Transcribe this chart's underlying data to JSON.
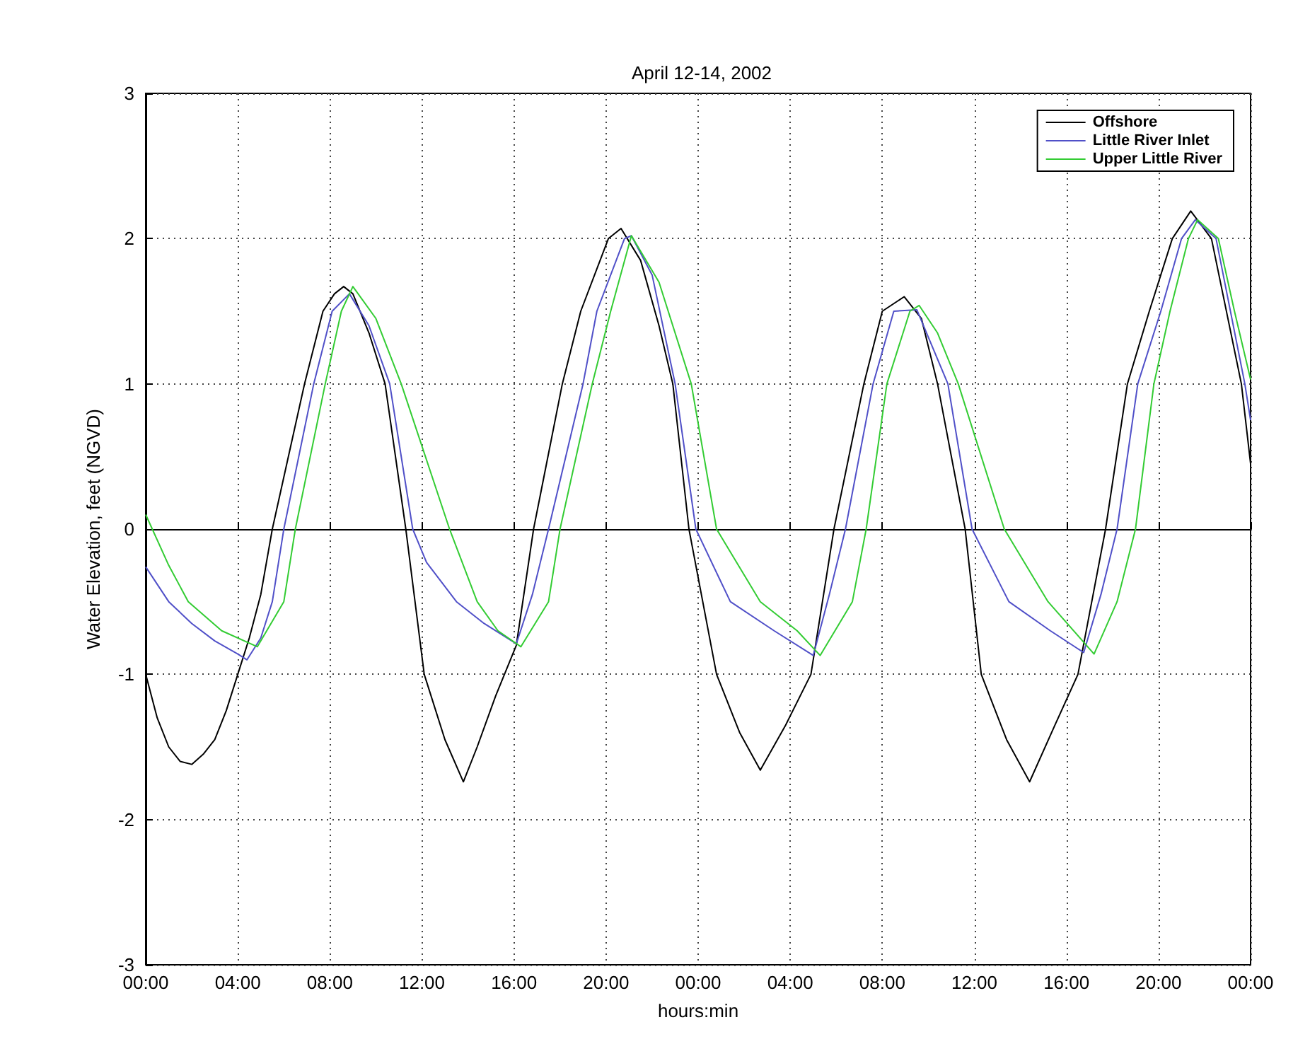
{
  "chart_data": {
    "type": "line",
    "title": "April 12-14, 2002",
    "xlabel": "hours:min",
    "ylabel": "Water Elevation, feet (NGVD)",
    "xlim": [
      "2002-04-12T00:00",
      "2002-04-14T00:00"
    ],
    "xticks": [
      {
        "value": "2002-04-12T00:00",
        "label": "00:00"
      },
      {
        "value": "2002-04-12T04:00",
        "label": "04:00"
      },
      {
        "value": "2002-04-12T08:00",
        "label": "08:00"
      },
      {
        "value": "2002-04-12T12:00",
        "label": "12:00"
      },
      {
        "value": "2002-04-12T16:00",
        "label": "16:00"
      },
      {
        "value": "2002-04-12T20:00",
        "label": "20:00"
      },
      {
        "value": "2002-04-13T00:00",
        "label": "00:00"
      },
      {
        "value": "2002-04-13T04:00",
        "label": "04:00"
      },
      {
        "value": "2002-04-13T08:00",
        "label": "08:00"
      },
      {
        "value": "2002-04-13T12:00",
        "label": "12:00"
      },
      {
        "value": "2002-04-13T16:00",
        "label": "16:00"
      },
      {
        "value": "2002-04-13T20:00",
        "label": "20:00"
      },
      {
        "value": "2002-04-14T00:00",
        "label": "00:00"
      }
    ],
    "ylim": [
      -3,
      3
    ],
    "yticks": [
      -3,
      -2,
      -1,
      0,
      1,
      2,
      3
    ],
    "grid": true,
    "legend": "top right",
    "marker": "none",
    "line_style": "solid",
    "series": [
      {
        "name": "Offshore",
        "color": "#000000",
        "x": [
          "2002-04-12T00:00",
          "2002-04-12T00:30",
          "2002-04-12T01:00",
          "2002-04-12T01:30",
          "2002-04-12T02:00",
          "2002-04-12T02:30",
          "2002-04-12T03:00",
          "2002-04-12T03:30",
          "2002-04-12T04:00",
          "2002-04-12T04:30",
          "2002-04-12T05:00",
          "2002-04-12T05:30",
          "2002-04-12T06:12",
          "2002-04-12T06:54",
          "2002-04-12T07:42",
          "2002-04-12T08:12",
          "2002-04-12T08:36",
          "2002-04-12T09:00",
          "2002-04-12T09:42",
          "2002-04-12T10:24",
          "2002-04-12T11:18",
          "2002-04-12T12:06",
          "2002-04-12T13:00",
          "2002-04-12T13:48",
          "2002-04-12T14:24",
          "2002-04-12T15:12",
          "2002-04-12T16:06",
          "2002-04-12T16:51",
          "2002-04-12T18:06",
          "2002-04-12T18:54",
          "2002-04-12T20:06",
          "2002-04-12T20:39",
          "2002-04-12T21:30",
          "2002-04-12T22:18",
          "2002-04-12T22:54",
          "2002-04-12T23:36",
          "2002-04-13T00:48",
          "2002-04-13T01:48",
          "2002-04-13T02:42",
          "2002-04-13T03:48",
          "2002-04-13T04:54",
          "2002-04-13T05:54",
          "2002-04-13T07:12",
          "2002-04-13T08:00",
          "2002-04-13T08:57",
          "2002-04-13T09:42",
          "2002-04-13T10:24",
          "2002-04-13T11:36",
          "2002-04-13T12:18",
          "2002-04-13T13:24",
          "2002-04-13T14:24",
          "2002-04-13T15:30",
          "2002-04-13T16:30",
          "2002-04-13T17:42",
          "2002-04-13T18:39",
          "2002-04-13T19:36",
          "2002-04-13T20:36",
          "2002-04-13T21:24",
          "2002-04-13T22:18",
          "2002-04-13T23:36",
          "2002-04-14T00:00"
        ],
        "values": [
          -1.0,
          -1.3,
          -1.5,
          -1.6,
          -1.62,
          -1.55,
          -1.45,
          -1.25,
          -1.0,
          -0.75,
          -0.45,
          0,
          0.5,
          1.0,
          1.5,
          1.62,
          1.67,
          1.62,
          1.35,
          1.0,
          0,
          -1.0,
          -1.45,
          -1.74,
          -1.5,
          -1.15,
          -0.8,
          0,
          1.0,
          1.5,
          2.0,
          2.07,
          1.85,
          1.4,
          1.0,
          0,
          -1.0,
          -1.4,
          -1.66,
          -1.35,
          -1.0,
          0,
          1.0,
          1.5,
          1.6,
          1.45,
          1.0,
          0,
          -1.0,
          -1.45,
          -1.74,
          -1.35,
          -1.0,
          0,
          1.0,
          1.5,
          2.0,
          2.19,
          2.0,
          1.0,
          0.45
        ]
      },
      {
        "name": "Little River Inlet",
        "color": "#5050c8",
        "x": [
          "2002-04-12T00:00",
          "2002-04-12T01:00",
          "2002-04-12T02:00",
          "2002-04-12T03:00",
          "2002-04-12T04:00",
          "2002-04-12T04:24",
          "2002-04-12T05:00",
          "2002-04-12T05:30",
          "2002-04-12T06:00",
          "2002-04-12T07:18",
          "2002-04-12T08:06",
          "2002-04-12T08:51",
          "2002-04-12T09:42",
          "2002-04-12T10:36",
          "2002-04-12T11:36",
          "2002-04-12T12:12",
          "2002-04-12T13:30",
          "2002-04-12T14:42",
          "2002-04-12T16:06",
          "2002-04-12T16:48",
          "2002-04-12T17:30",
          "2002-04-12T19:00",
          "2002-04-12T19:36",
          "2002-04-12T20:48",
          "2002-04-12T21:06",
          "2002-04-12T22:00",
          "2002-04-12T23:00",
          "2002-04-12T23:54",
          "2002-04-13T01:24",
          "2002-04-13T03:18",
          "2002-04-13T05:00",
          "2002-04-13T05:42",
          "2002-04-13T06:24",
          "2002-04-13T07:36",
          "2002-04-13T08:30",
          "2002-04-13T09:30",
          "2002-04-13T10:51",
          "2002-04-13T11:54",
          "2002-04-13T13:30",
          "2002-04-13T15:18",
          "2002-04-13T16:45",
          "2002-04-13T17:30",
          "2002-04-13T18:12",
          "2002-04-13T19:06",
          "2002-04-13T20:06",
          "2002-04-13T21:00",
          "2002-04-13T21:36",
          "2002-04-13T22:30",
          "2002-04-13T23:45",
          "2002-04-14T00:00"
        ],
        "values": [
          -0.26,
          -0.5,
          -0.65,
          -0.77,
          -0.86,
          -0.9,
          -0.75,
          -0.5,
          0,
          1.0,
          1.5,
          1.62,
          1.4,
          1.0,
          0,
          -0.23,
          -0.5,
          -0.65,
          -0.79,
          -0.45,
          0,
          1.0,
          1.5,
          2.0,
          2.02,
          1.75,
          1.0,
          0,
          -0.5,
          -0.7,
          -0.87,
          -0.45,
          0,
          1.0,
          1.5,
          1.51,
          1.0,
          0,
          -0.5,
          -0.7,
          -0.85,
          -0.45,
          0,
          1.0,
          1.5,
          2.0,
          2.13,
          2.0,
          1.0,
          0.75
        ]
      },
      {
        "name": "Upper Little River",
        "color": "#33cc33",
        "x": [
          "2002-04-12T00:00",
          "2002-04-12T01:00",
          "2002-04-12T01:51",
          "2002-04-12T03:18",
          "2002-04-12T04:51",
          "2002-04-12T06:00",
          "2002-04-12T06:30",
          "2002-04-12T07:48",
          "2002-04-12T08:30",
          "2002-04-12T09:00",
          "2002-04-12T10:00",
          "2002-04-12T11:06",
          "2002-04-12T13:12",
          "2002-04-12T14:24",
          "2002-04-12T15:18",
          "2002-04-12T16:18",
          "2002-04-12T17:30",
          "2002-04-12T18:00",
          "2002-04-12T19:24",
          "2002-04-12T20:12",
          "2002-04-12T21:06",
          "2002-04-12T22:18",
          "2002-04-12T23:42",
          "2002-04-13T00:48",
          "2002-04-13T02:42",
          "2002-04-13T04:18",
          "2002-04-13T05:18",
          "2002-04-13T06:42",
          "2002-04-13T07:18",
          "2002-04-13T08:12",
          "2002-04-13T09:12",
          "2002-04-13T09:36",
          "2002-04-13T10:24",
          "2002-04-13T11:18",
          "2002-04-13T13:18",
          "2002-04-13T15:12",
          "2002-04-13T17:12",
          "2002-04-13T18:12",
          "2002-04-13T19:00",
          "2002-04-13T19:48",
          "2002-04-13T20:30",
          "2002-04-13T21:18",
          "2002-04-13T21:42",
          "2002-04-13T22:36",
          "2002-04-13T23:18",
          "2002-04-14T00:00"
        ],
        "values": [
          0.1,
          -0.25,
          -0.5,
          -0.7,
          -0.81,
          -0.5,
          0,
          1.0,
          1.5,
          1.67,
          1.45,
          1.0,
          0,
          -0.5,
          -0.7,
          -0.81,
          -0.5,
          0,
          1.0,
          1.5,
          2.02,
          1.7,
          1.0,
          0,
          -0.5,
          -0.7,
          -0.87,
          -0.5,
          0,
          1.0,
          1.5,
          1.54,
          1.35,
          1.0,
          0,
          -0.5,
          -0.86,
          -0.5,
          0,
          1.0,
          1.5,
          2.0,
          2.13,
          2.0,
          1.5,
          1.03
        ]
      }
    ]
  }
}
